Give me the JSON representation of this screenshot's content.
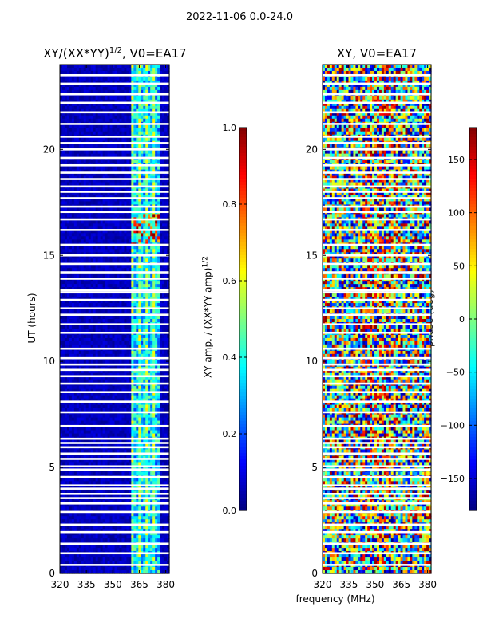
{
  "suptitle": "2022-11-06 0.0-24.0",
  "chart_data": [
    {
      "type": "heatmap",
      "title_main": "XY/(XX*YY)",
      "title_sup": "1/2",
      "title_tail": ", V0=EA17",
      "xlabel": "",
      "ylabel": "UT (hours)",
      "xlim": [
        320,
        382
      ],
      "ylim": [
        0,
        24
      ],
      "xticks": [
        "320",
        "335",
        "350",
        "365",
        "380"
      ],
      "xtick_values": [
        320,
        335,
        350,
        365,
        380
      ],
      "yticks": [
        "0",
        "5",
        "10",
        "15",
        "20"
      ],
      "ytick_values": [
        0,
        5,
        10,
        15,
        20
      ],
      "colorbar": {
        "label_main": "XY amp. / (XX*YY amp)",
        "label_sup": "1/2",
        "range": [
          0.0,
          1.0
        ],
        "ticks": [
          "0.0",
          "0.2",
          "0.4",
          "0.6",
          "0.8",
          "1.0"
        ],
        "tick_values": [
          0.0,
          0.2,
          0.4,
          0.6,
          0.8,
          1.0
        ]
      },
      "bright_band_mhz": [
        360,
        376
      ],
      "gap_hours": [
        0.4,
        0.95,
        1.4,
        1.95,
        2.3,
        2.9,
        3.3,
        3.55,
        3.75,
        4.0,
        4.15,
        4.55,
        4.9,
        5.05,
        5.4,
        5.65,
        5.95,
        6.15,
        6.35,
        6.95,
        7.6,
        8.1,
        8.55,
        8.95,
        9.3,
        9.6,
        9.85,
        10.15,
        10.6,
        11.35,
        11.75,
        12.2,
        12.5,
        12.9,
        13.25,
        13.35,
        13.9,
        14.2,
        14.6,
        15.0,
        15.5,
        16.2,
        16.7,
        17.05,
        17.3,
        17.7,
        18.0,
        18.25,
        18.6,
        18.9,
        19.25,
        19.6,
        20.0,
        20.3,
        20.6,
        21.2,
        21.75,
        22.2,
        22.6,
        23.1,
        23.5
      ]
    },
    {
      "type": "heatmap",
      "title": "XY, V0=EA17",
      "xlabel": "frequency (MHz)",
      "ylabel": "",
      "xlim": [
        320,
        382
      ],
      "ylim": [
        0,
        24
      ],
      "xticks": [
        "320",
        "335",
        "350",
        "365",
        "380"
      ],
      "xtick_values": [
        320,
        335,
        350,
        365,
        380
      ],
      "yticks": [
        "0",
        "5",
        "10",
        "15",
        "20"
      ],
      "ytick_values": [
        0,
        5,
        10,
        15,
        20
      ],
      "colorbar": {
        "label": "phase (deg)",
        "range": [
          -180,
          180
        ],
        "ticks": [
          "−150",
          "−100",
          "−50",
          "0",
          "50",
          "100",
          "150"
        ],
        "tick_values": [
          -150,
          -100,
          -50,
          0,
          50,
          100,
          150
        ]
      },
      "gap_hours": [
        0.4,
        0.95,
        1.4,
        1.95,
        2.3,
        2.9,
        3.3,
        3.55,
        3.75,
        4.0,
        4.15,
        4.55,
        4.9,
        5.05,
        5.4,
        5.65,
        5.95,
        6.15,
        6.35,
        6.95,
        7.6,
        8.1,
        8.55,
        8.95,
        9.3,
        9.6,
        9.85,
        10.15,
        10.6,
        11.35,
        11.75,
        12.2,
        12.5,
        12.9,
        13.25,
        13.35,
        13.9,
        14.2,
        14.6,
        15.0,
        15.5,
        16.2,
        16.7,
        17.05,
        17.3,
        17.7,
        18.0,
        18.25,
        18.6,
        18.9,
        19.25,
        19.6,
        20.0,
        20.3,
        20.6,
        21.2,
        21.75,
        22.2,
        22.6,
        23.1,
        23.5
      ]
    }
  ]
}
